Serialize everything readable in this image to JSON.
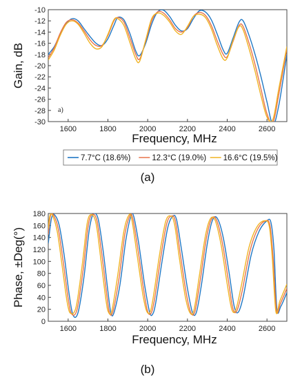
{
  "colors": {
    "blue": "#1f77c4",
    "orange": "#e8734a",
    "yellow": "#f0b323",
    "axis": "#444444"
  },
  "chart_data": [
    {
      "type": "line",
      "panel": "(a)",
      "inset_label": "a)",
      "xlabel": "Frequency, MHz",
      "ylabel": "Gain, dB",
      "xlim": [
        1500,
        2700
      ],
      "ylim": [
        -30,
        -10
      ],
      "xticks": [
        1600,
        1800,
        2000,
        2200,
        2400,
        2600
      ],
      "yticks": [
        -10,
        -12,
        -14,
        -16,
        -18,
        -20,
        -22,
        -24,
        -26,
        -28,
        -30
      ],
      "legend": [
        "7.7°C (18.6%)",
        "12.3°C (19.0%)",
        "16.6°C (19.5%)"
      ],
      "legend_placement": "bottom",
      "series": [
        {
          "name": "7.7°C (18.6%)",
          "color": "#1f77c4",
          "x": [
            1500,
            1530,
            1560,
            1590,
            1620,
            1650,
            1680,
            1710,
            1740,
            1770,
            1800,
            1830,
            1850,
            1880,
            1910,
            1940,
            1960,
            1990,
            2020,
            2050,
            2080,
            2110,
            2140,
            2170,
            2200,
            2230,
            2260,
            2290,
            2320,
            2350,
            2380,
            2400,
            2430,
            2460,
            2480,
            2510,
            2540,
            2570,
            2600,
            2630,
            2660,
            2700
          ],
          "y": [
            -18.0,
            -16.6,
            -14.4,
            -12.5,
            -11.6,
            -12.0,
            -13.4,
            -14.8,
            -16.0,
            -16.4,
            -15.2,
            -12.8,
            -11.4,
            -11.8,
            -14.2,
            -17.4,
            -18.2,
            -16.0,
            -12.6,
            -10.4,
            -10.1,
            -11.2,
            -12.8,
            -13.8,
            -13.4,
            -11.6,
            -10.2,
            -10.4,
            -11.8,
            -14.4,
            -17.2,
            -17.8,
            -15.0,
            -12.2,
            -12.0,
            -14.6,
            -18.0,
            -22.0,
            -26.5,
            -30.5,
            -27.0,
            -18.0
          ]
        },
        {
          "name": "12.3°C (19.0%)",
          "color": "#e8734a",
          "x": [
            1500,
            1530,
            1560,
            1590,
            1620,
            1650,
            1680,
            1710,
            1740,
            1770,
            1800,
            1830,
            1850,
            1880,
            1910,
            1940,
            1960,
            1990,
            2020,
            2050,
            2080,
            2110,
            2140,
            2170,
            2200,
            2230,
            2260,
            2290,
            2320,
            2350,
            2380,
            2400,
            2430,
            2460,
            2480,
            2510,
            2540,
            2570,
            2600,
            2630,
            2660,
            2700
          ],
          "y": [
            -18.6,
            -16.8,
            -14.2,
            -12.3,
            -11.8,
            -12.4,
            -13.8,
            -15.4,
            -16.4,
            -16.4,
            -14.6,
            -12.0,
            -11.4,
            -12.2,
            -15.0,
            -18.0,
            -18.8,
            -15.6,
            -12.0,
            -10.4,
            -10.6,
            -11.8,
            -13.4,
            -14.0,
            -13.2,
            -11.2,
            -10.5,
            -11.0,
            -12.8,
            -15.6,
            -18.0,
            -18.4,
            -15.6,
            -12.8,
            -13.0,
            -16.0,
            -19.8,
            -24.2,
            -28.6,
            -30.2,
            -25.0,
            -17.0
          ]
        },
        {
          "name": "16.6°C (19.5%)",
          "color": "#f0b323",
          "x": [
            1500,
            1530,
            1560,
            1590,
            1620,
            1650,
            1680,
            1710,
            1740,
            1770,
            1800,
            1830,
            1850,
            1880,
            1910,
            1940,
            1960,
            1990,
            2020,
            2050,
            2080,
            2110,
            2140,
            2170,
            2200,
            2230,
            2260,
            2290,
            2320,
            2350,
            2380,
            2400,
            2430,
            2460,
            2480,
            2510,
            2540,
            2570,
            2600,
            2630,
            2660,
            2700
          ],
          "y": [
            -19.0,
            -17.2,
            -14.6,
            -12.6,
            -12.0,
            -12.6,
            -14.2,
            -16.0,
            -17.0,
            -16.6,
            -14.4,
            -11.8,
            -11.6,
            -12.8,
            -15.8,
            -18.8,
            -19.2,
            -15.4,
            -11.6,
            -10.6,
            -11.0,
            -12.2,
            -13.8,
            -14.4,
            -13.0,
            -11.2,
            -10.8,
            -11.4,
            -13.4,
            -16.4,
            -18.8,
            -18.6,
            -15.4,
            -13.0,
            -13.6,
            -17.0,
            -21.0,
            -25.4,
            -29.2,
            -29.6,
            -24.0,
            -16.6
          ]
        }
      ]
    },
    {
      "type": "line",
      "panel": "(b)",
      "xlabel": "Frequency, MHz",
      "ylabel": "Phase, ±Deg(°)",
      "xlim": [
        1500,
        2700
      ],
      "ylim": [
        0,
        180
      ],
      "xticks": [
        1600,
        1800,
        2000,
        2200,
        2400,
        2600
      ],
      "yticks": [
        0,
        20,
        40,
        60,
        80,
        100,
        120,
        140,
        160,
        180
      ],
      "series": [
        {
          "color": "#1f77c4",
          "x": [
            1500,
            1515,
            1530,
            1555,
            1580,
            1605,
            1625,
            1650,
            1680,
            1705,
            1725,
            1750,
            1775,
            1800,
            1815,
            1830,
            1860,
            1890,
            1915,
            1930,
            1955,
            1985,
            2010,
            2025,
            2040,
            2070,
            2100,
            2125,
            2145,
            2170,
            2200,
            2225,
            2245,
            2270,
            2300,
            2325,
            2350,
            2380,
            2410,
            2435,
            2455,
            2480,
            2520,
            2560,
            2600,
            2620,
            2635,
            2650,
            2670,
            2700
          ],
          "y": [
            130,
            170,
            178,
            160,
            110,
            45,
            10,
            15,
            75,
            150,
            178,
            172,
            120,
            50,
            14,
            14,
            60,
            135,
            175,
            175,
            130,
            60,
            15,
            12,
            30,
            95,
            155,
            175,
            170,
            120,
            55,
            15,
            15,
            60,
            130,
            168,
            172,
            140,
            80,
            25,
            15,
            40,
            110,
            150,
            168,
            165,
            120,
            20,
            25,
            48
          ]
        },
        {
          "color": "#e8734a",
          "x": [
            1500,
            1510,
            1525,
            1550,
            1575,
            1600,
            1618,
            1645,
            1675,
            1700,
            1720,
            1745,
            1770,
            1795,
            1808,
            1825,
            1855,
            1885,
            1910,
            1925,
            1950,
            1980,
            2000,
            2018,
            2035,
            2065,
            2095,
            2120,
            2140,
            2165,
            2195,
            2218,
            2238,
            2265,
            2295,
            2320,
            2345,
            2375,
            2405,
            2428,
            2448,
            2475,
            2515,
            2555,
            2595,
            2615,
            2630,
            2648,
            2668,
            2700
          ],
          "y": [
            145,
            175,
            178,
            155,
            100,
            38,
            12,
            20,
            85,
            158,
            178,
            168,
            110,
            42,
            14,
            16,
            70,
            145,
            176,
            172,
            122,
            52,
            16,
            14,
            38,
            105,
            162,
            176,
            166,
            110,
            45,
            14,
            17,
            70,
            138,
            170,
            170,
            132,
            70,
            22,
            17,
            50,
            118,
            155,
            168,
            160,
            110,
            18,
            30,
            55
          ]
        },
        {
          "color": "#f0b323",
          "x": [
            1500,
            1508,
            1520,
            1545,
            1570,
            1595,
            1613,
            1640,
            1670,
            1695,
            1715,
            1740,
            1765,
            1790,
            1803,
            1820,
            1850,
            1880,
            1905,
            1920,
            1945,
            1975,
            1995,
            2013,
            2030,
            2060,
            2090,
            2115,
            2135,
            2160,
            2190,
            2213,
            2233,
            2260,
            2290,
            2315,
            2340,
            2370,
            2400,
            2423,
            2443,
            2470,
            2510,
            2550,
            2590,
            2612,
            2627,
            2645,
            2665,
            2700
          ],
          "y": [
            155,
            176,
            178,
            150,
            92,
            32,
            13,
            24,
            92,
            162,
            178,
            164,
            102,
            36,
            15,
            18,
            78,
            150,
            177,
            170,
            115,
            46,
            17,
            16,
            44,
            112,
            166,
            176,
            162,
            104,
            40,
            14,
            19,
            76,
            142,
            171,
            168,
            126,
            62,
            20,
            19,
            58,
            124,
            158,
            168,
            158,
            104,
            16,
            34,
            62
          ]
        }
      ]
    }
  ]
}
